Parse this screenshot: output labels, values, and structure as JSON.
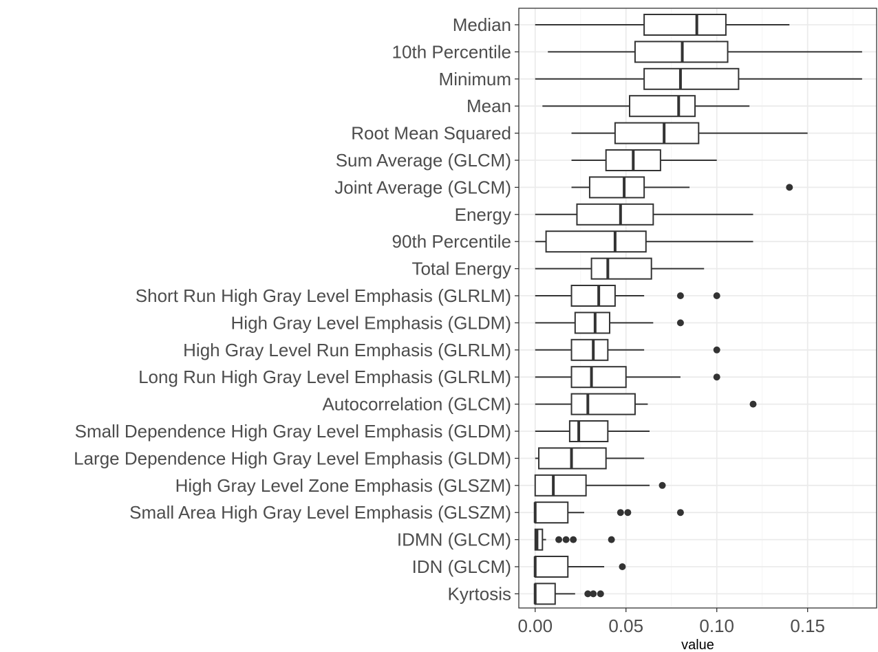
{
  "chart_data": {
    "type": "boxplot",
    "orientation": "horizontal",
    "xlabel": "value",
    "ylabel": "",
    "xlim": [
      -0.009,
      0.188
    ],
    "x_ticks": [
      {
        "value": 0.0,
        "label": "0.00"
      },
      {
        "value": 0.05,
        "label": "0.05"
      },
      {
        "value": 0.1,
        "label": "0.10"
      },
      {
        "value": 0.15,
        "label": "0.15"
      }
    ],
    "grid": true,
    "legend": "none",
    "colors": {
      "box_stroke": "#333333",
      "box_fill": "#ffffff",
      "grid_major": "#ebebeb",
      "grid_minor": "#f5f5f5",
      "panel_border": "#333333",
      "label": "#4d4d4d"
    },
    "categories": [
      {
        "label": "Median",
        "min": 0.0,
        "q1": 0.06,
        "median": 0.089,
        "q3": 0.105,
        "max": 0.14,
        "outliers": []
      },
      {
        "label": "10th Percentile",
        "min": 0.007,
        "q1": 0.055,
        "median": 0.081,
        "q3": 0.106,
        "max": 0.18,
        "outliers": []
      },
      {
        "label": "Minimum",
        "min": 0.0,
        "q1": 0.06,
        "median": 0.08,
        "q3": 0.112,
        "max": 0.18,
        "outliers": []
      },
      {
        "label": "Mean",
        "min": 0.004,
        "q1": 0.052,
        "median": 0.079,
        "q3": 0.088,
        "max": 0.118,
        "outliers": []
      },
      {
        "label": "Root Mean Squared",
        "min": 0.02,
        "q1": 0.044,
        "median": 0.071,
        "q3": 0.09,
        "max": 0.15,
        "outliers": []
      },
      {
        "label": "Sum Average (GLCM)",
        "min": 0.02,
        "q1": 0.039,
        "median": 0.054,
        "q3": 0.069,
        "max": 0.1,
        "outliers": []
      },
      {
        "label": "Joint Average (GLCM)",
        "min": 0.02,
        "q1": 0.03,
        "median": 0.049,
        "q3": 0.06,
        "max": 0.085,
        "outliers": [
          0.14
        ]
      },
      {
        "label": "Energy",
        "min": 0.0,
        "q1": 0.023,
        "median": 0.047,
        "q3": 0.065,
        "max": 0.12,
        "outliers": []
      },
      {
        "label": "90th Percentile",
        "min": 0.0,
        "q1": 0.006,
        "median": 0.044,
        "q3": 0.061,
        "max": 0.12,
        "outliers": []
      },
      {
        "label": "Total Energy",
        "min": 0.0,
        "q1": 0.031,
        "median": 0.04,
        "q3": 0.064,
        "max": 0.093,
        "outliers": []
      },
      {
        "label": "Short Run High Gray Level Emphasis (GLRLM)",
        "min": 0.0,
        "q1": 0.02,
        "median": 0.035,
        "q3": 0.044,
        "max": 0.06,
        "outliers": [
          0.08,
          0.1
        ]
      },
      {
        "label": "High Gray Level Emphasis (GLDM)",
        "min": 0.0,
        "q1": 0.022,
        "median": 0.033,
        "q3": 0.041,
        "max": 0.065,
        "outliers": [
          0.08
        ]
      },
      {
        "label": "High Gray Level Run Emphasis (GLRLM)",
        "min": 0.0,
        "q1": 0.02,
        "median": 0.032,
        "q3": 0.04,
        "max": 0.06,
        "outliers": [
          0.1
        ]
      },
      {
        "label": "Long Run High Gray Level Emphasis (GLRLM)",
        "min": 0.0,
        "q1": 0.02,
        "median": 0.031,
        "q3": 0.05,
        "max": 0.08,
        "outliers": [
          0.1
        ]
      },
      {
        "label": "Autocorrelation (GLCM)",
        "min": 0.0,
        "q1": 0.02,
        "median": 0.029,
        "q3": 0.055,
        "max": 0.062,
        "outliers": [
          0.12
        ]
      },
      {
        "label": "Small Dependence High Gray Level Emphasis (GLDM)",
        "min": 0.0,
        "q1": 0.019,
        "median": 0.024,
        "q3": 0.04,
        "max": 0.063,
        "outliers": []
      },
      {
        "label": "Large Dependence High Gray Level Emphasis (GLDM)",
        "min": 0.0,
        "q1": 0.002,
        "median": 0.02,
        "q3": 0.039,
        "max": 0.06,
        "outliers": []
      },
      {
        "label": "High Gray Level Zone Emphasis (GLSZM)",
        "min": 0.0,
        "q1": 0.0,
        "median": 0.01,
        "q3": 0.028,
        "max": 0.063,
        "outliers": [
          0.07
        ]
      },
      {
        "label": "Small Area High Gray Level Emphasis (GLSZM)",
        "min": 0.0,
        "q1": 0.0,
        "median": 0.0,
        "q3": 0.018,
        "max": 0.027,
        "outliers": [
          0.047,
          0.051,
          0.08
        ]
      },
      {
        "label": "IDMN (GLCM)",
        "min": 0.0,
        "q1": 0.0,
        "median": 0.001,
        "q3": 0.004,
        "max": 0.006,
        "outliers": [
          0.013,
          0.017,
          0.021,
          0.042
        ]
      },
      {
        "label": "IDN (GLCM)",
        "min": 0.0,
        "q1": 0.0,
        "median": 0.0,
        "q3": 0.018,
        "max": 0.038,
        "outliers": [
          0.048
        ]
      },
      {
        "label": "Kyrtosis",
        "min": 0.0,
        "q1": 0.0,
        "median": 0.0,
        "q3": 0.011,
        "max": 0.022,
        "outliers": [
          0.029,
          0.032,
          0.036
        ]
      }
    ]
  }
}
